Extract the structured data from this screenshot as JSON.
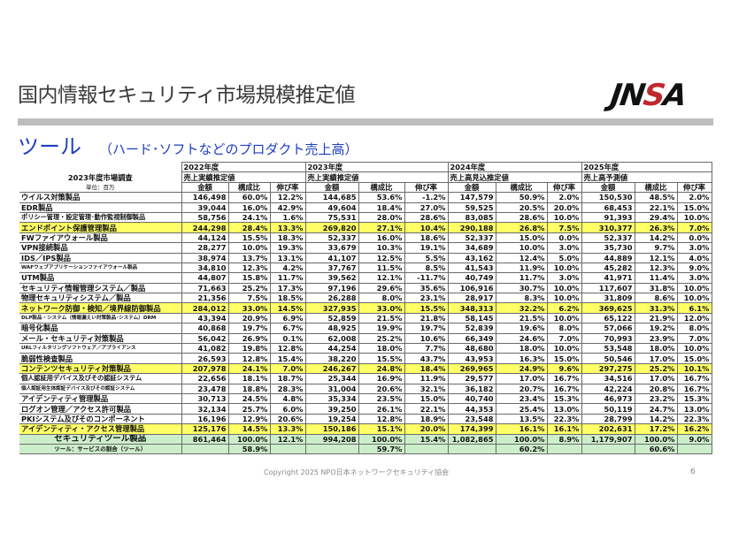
{
  "page": {
    "title": "国内情報セキュリティ市場規模推定値",
    "logo": {
      "part1": "JN",
      "part2": "S",
      "part3": "A"
    },
    "subtitle_main": "ツール",
    "subtitle_sub": "（ハード･ソフトなどのプロダクト売上高）",
    "footer": "Copyright 2025 NPO日本ネットワークセキュリティ協会",
    "page_number": "6",
    "colors": {
      "highlight_yellow": "#ffff66",
      "total_green": "#cdeecb",
      "subtitle_blue": "#1f3fbf",
      "logo_red": "#c0282e"
    }
  },
  "table": {
    "survey_label": "2023年度市場調査",
    "unit_label": "単位：百万",
    "years": [
      {
        "year": "2022年度",
        "kind": "売上実績推定値"
      },
      {
        "year": "2023年度",
        "kind": "売上実績推定値"
      },
      {
        "year": "2024年度",
        "kind": "売上高見込推定値"
      },
      {
        "year": "2025年度",
        "kind": "売上高予測値"
      }
    ],
    "col_headers": [
      "金額",
      "構成比",
      "伸び率"
    ],
    "rows": [
      {
        "label": "ウイルス対策製品",
        "v": [
          "146,498",
          "60.0%",
          "12.2%",
          "144,685",
          "53.6%",
          "-1.2%",
          "147,579",
          "50.9%",
          "2.0%",
          "150,530",
          "48.5%",
          "2.0%"
        ]
      },
      {
        "label": "EDR製品",
        "v": [
          "39,044",
          "16.0%",
          "42.9%",
          "49,604",
          "18.4%",
          "27.0%",
          "59,525",
          "20.5%",
          "20.0%",
          "68,453",
          "22.1%",
          "15.0%"
        ]
      },
      {
        "label": "ポリシー管理・設定管理･動作監視制御製品",
        "v": [
          "58,756",
          "24.1%",
          "1.6%",
          "75,531",
          "28.0%",
          "28.6%",
          "83,085",
          "28.6%",
          "10.0%",
          "91,393",
          "29.4%",
          "10.0%"
        ]
      },
      {
        "label": "エンドポイント保護管理製品",
        "v": [
          "244,298",
          "28.4%",
          "13.3%",
          "269,820",
          "27.1%",
          "10.4%",
          "290,188",
          "26.8%",
          "7.5%",
          "310,377",
          "26.3%",
          "7.0%"
        ]
      },
      {
        "label": "FWファイアウォール製品",
        "v": [
          "44,124",
          "15.5%",
          "18.3%",
          "52,337",
          "16.0%",
          "18.6%",
          "52,337",
          "15.0%",
          "0.0%",
          "52,337",
          "14.2%",
          "0.0%"
        ]
      },
      {
        "label": "VPN接続製品",
        "v": [
          "28,277",
          "10.0%",
          "19.3%",
          "33,679",
          "10.3%",
          "19.1%",
          "34,689",
          "10.0%",
          "3.0%",
          "35,730",
          "9.7%",
          "3.0%"
        ]
      },
      {
        "label": "IDS／IPS製品",
        "v": [
          "38,974",
          "13.7%",
          "13.1%",
          "41,107",
          "12.5%",
          "5.5%",
          "43,162",
          "12.4%",
          "5.0%",
          "44,889",
          "12.1%",
          "4.0%"
        ]
      },
      {
        "label": "WAFウェブアプリケーションファイアウォール製品",
        "v": [
          "34,810",
          "12.3%",
          "4.2%",
          "37,767",
          "11.5%",
          "8.5%",
          "41,543",
          "11.9%",
          "10.0%",
          "45,282",
          "12.3%",
          "9.0%"
        ]
      },
      {
        "label": "UTM製品",
        "v": [
          "44,807",
          "15.8%",
          "11.7%",
          "39,562",
          "12.1%",
          "-11.7%",
          "40,749",
          "11.7%",
          "3.0%",
          "41,971",
          "11.4%",
          "3.0%"
        ]
      },
      {
        "label": "セキュリティ情報管理システム／製品",
        "v": [
          "71,663",
          "25.2%",
          "17.3%",
          "97,196",
          "29.6%",
          "35.6%",
          "106,916",
          "30.7%",
          "10.0%",
          "117,607",
          "31.8%",
          "10.0%"
        ]
      },
      {
        "label": "物理セキュリティシステム／製品",
        "v": [
          "21,356",
          "7.5%",
          "18.5%",
          "26,288",
          "8.0%",
          "23.1%",
          "28,917",
          "8.3%",
          "10.0%",
          "31,809",
          "8.6%",
          "10.0%"
        ]
      },
      {
        "label": "ネットワーク防御・検知／境界線防御製品",
        "v": [
          "284,012",
          "33.0%",
          "14.5%",
          "327,935",
          "33.0%",
          "15.5%",
          "348,313",
          "32.2%",
          "6.2%",
          "369,625",
          "31.3%",
          "6.1%"
        ]
      },
      {
        "label": "DLP製品・システム（情報漏えい対策製品･システム）DRM",
        "v": [
          "43,394",
          "20.9%",
          "6.9%",
          "52,859",
          "21.5%",
          "21.8%",
          "58,145",
          "21.5%",
          "10.0%",
          "65,122",
          "21.9%",
          "12.0%"
        ]
      },
      {
        "label": "暗号化製品",
        "v": [
          "40,868",
          "19.7%",
          "6.7%",
          "48,925",
          "19.9%",
          "19.7%",
          "52,839",
          "19.6%",
          "8.0%",
          "57,066",
          "19.2%",
          "8.0%"
        ]
      },
      {
        "label": "メール・セキュリティ対策製品",
        "v": [
          "56,042",
          "26.9%",
          "0.1%",
          "62,008",
          "25.2%",
          "10.6%",
          "66,349",
          "24.6%",
          "7.0%",
          "70,993",
          "23.9%",
          "7.0%"
        ]
      },
      {
        "label": "URLフィルタリングソフトウェア／アプライアンス",
        "v": [
          "41,082",
          "19.8%",
          "12.8%",
          "44,254",
          "18.0%",
          "7.7%",
          "48,680",
          "18.0%",
          "10.0%",
          "53,548",
          "18.0%",
          "10.0%"
        ]
      },
      {
        "label": "脆弱性検査製品",
        "v": [
          "26,593",
          "12.8%",
          "15.4%",
          "38,220",
          "15.5%",
          "43.7%",
          "43,953",
          "16.3%",
          "15.0%",
          "50,546",
          "17.0%",
          "15.0%"
        ]
      },
      {
        "label": "コンテンツセキュリティ対策製品",
        "v": [
          "207,978",
          "24.1%",
          "7.0%",
          "246,267",
          "24.8%",
          "18.4%",
          "269,965",
          "24.9%",
          "9.6%",
          "297,275",
          "25.2%",
          "10.1%"
        ]
      },
      {
        "label": "個人認証用デバイス及びその認証システム",
        "v": [
          "22,656",
          "18.1%",
          "18.7%",
          "25,344",
          "16.9%",
          "11.9%",
          "29,577",
          "17.0%",
          "16.7%",
          "34,516",
          "17.0%",
          "16.7%"
        ]
      },
      {
        "label": "個人認証用生体認証デバイス及びその認証システム",
        "v": [
          "23,478",
          "18.8%",
          "28.3%",
          "31,004",
          "20.6%",
          "32.1%",
          "36,182",
          "20.7%",
          "16.7%",
          "42,224",
          "20.8%",
          "16.7%"
        ]
      },
      {
        "label": "アイデンティティ管理製品",
        "v": [
          "30,713",
          "24.5%",
          "4.8%",
          "35,334",
          "23.5%",
          "15.0%",
          "40,740",
          "23.4%",
          "15.3%",
          "46,973",
          "23.2%",
          "15.3%"
        ]
      },
      {
        "label": "ログオン管理／アクセス許可製品",
        "v": [
          "32,134",
          "25.7%",
          "6.0%",
          "39,250",
          "26.1%",
          "22.1%",
          "44,353",
          "25.4%",
          "13.0%",
          "50,119",
          "24.7%",
          "13.0%"
        ]
      },
      {
        "label": "PKIシステム及びそのコンポーネント",
        "v": [
          "16,196",
          "12.9%",
          "20.6%",
          "19,254",
          "12.8%",
          "18.9%",
          "23,548",
          "13.5%",
          "22.3%",
          "28,799",
          "14.2%",
          "22.3%"
        ]
      },
      {
        "label": "アイデンティティ・アクセス管理製品",
        "v": [
          "125,176",
          "14.5%",
          "13.3%",
          "150,186",
          "15.1%",
          "20.0%",
          "174,399",
          "16.1%",
          "16.1%",
          "202,631",
          "17.2%",
          "16.2%"
        ]
      },
      {
        "label": "セキュリティツール製品",
        "v": [
          "861,464",
          "100.0%",
          "12.1%",
          "994,208",
          "100.0%",
          "15.4%",
          "1,082,865",
          "100.0%",
          "8.9%",
          "1,179,907",
          "100.0%",
          "9.0%"
        ]
      },
      {
        "label": "ツール：サービスの割合（ツール）",
        "v": [
          "",
          "58.9%",
          "",
          "",
          "59.7%",
          "",
          "",
          "60.2%",
          "",
          "",
          "60.6%",
          ""
        ]
      }
    ]
  }
}
